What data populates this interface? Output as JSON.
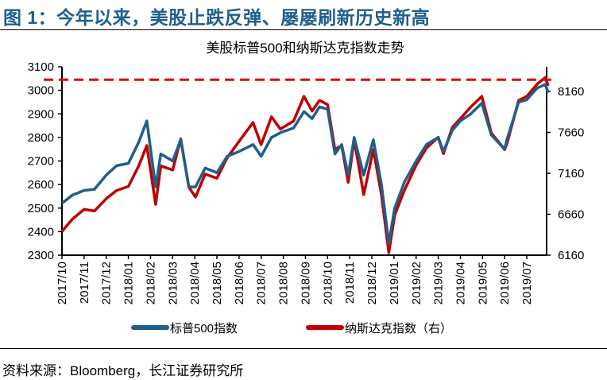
{
  "figure_title": "图 1：今年以来，美股止跌反弹、屡屡刷新历史新高",
  "source": "资料来源：Bloomberg，长江证券研究所",
  "colors": {
    "sp500": "#1f5f8b",
    "nasdaq": "#c00000",
    "title": "#1f5f8b"
  },
  "chart_data": {
    "type": "line",
    "title": "美股标普500和纳斯达克指数走势",
    "legend_position": "bottom",
    "left_axis": {
      "min": 2300,
      "max": 3100,
      "ticks": [
        2300,
        2400,
        2500,
        2600,
        2700,
        2800,
        2900,
        3000,
        3100
      ]
    },
    "right_axis": {
      "min": 6160,
      "max": 8160,
      "ticks": [
        6160,
        6660,
        7160,
        7660,
        8160
      ]
    },
    "x_ticks": [
      "2017/10",
      "2017/11",
      "2017/12",
      "2018/01",
      "2018/02",
      "2018/03",
      "2018/04",
      "2018/05",
      "2018/06",
      "2018/07",
      "2018/08",
      "2018/09",
      "2018/10",
      "2018/11",
      "2018/12",
      "2019/01",
      "2019/02",
      "2019/03",
      "2019/04",
      "2019/05",
      "2019/06",
      "2019/07"
    ],
    "reference_line": {
      "axis": "left",
      "value": 3045,
      "style": "dashed",
      "color": "#e00000"
    },
    "x": [
      "2017/10/01",
      "2017/10/15",
      "2017/11/01",
      "2017/11/15",
      "2017/12/01",
      "2017/12/15",
      "2018/01/01",
      "2018/01/15",
      "2018/01/26",
      "2018/02/08",
      "2018/02/15",
      "2018/03/01",
      "2018/03/12",
      "2018/03/23",
      "2018/04/02",
      "2018/04/15",
      "2018/05/01",
      "2018/05/15",
      "2018/06/01",
      "2018/06/20",
      "2018/07/01",
      "2018/07/15",
      "2018/07/27",
      "2018/08/15",
      "2018/08/29",
      "2018/09/10",
      "2018/09/20",
      "2018/10/01",
      "2018/10/11",
      "2018/10/20",
      "2018/10/29",
      "2018/11/07",
      "2018/11/20",
      "2018/12/03",
      "2018/12/14",
      "2018/12/24",
      "2019/01/02",
      "2019/01/15",
      "2019/02/01",
      "2019/02/15",
      "2019/03/01",
      "2019/03/08",
      "2019/03/20",
      "2019/04/01",
      "2019/04/15",
      "2019/04/30",
      "2019/05/13",
      "2019/05/31",
      "2019/06/04",
      "2019/06/20",
      "2019/07/01",
      "2019/07/15",
      "2019/07/26",
      "2019/07/30"
    ],
    "series": [
      {
        "name": "标普500指数",
        "axis": "left",
        "values": [
          2520,
          2555,
          2575,
          2580,
          2640,
          2680,
          2690,
          2780,
          2870,
          2590,
          2730,
          2700,
          2790,
          2590,
          2590,
          2670,
          2650,
          2720,
          2740,
          2770,
          2720,
          2800,
          2820,
          2840,
          2910,
          2880,
          2930,
          2920,
          2730,
          2770,
          2640,
          2800,
          2640,
          2790,
          2600,
          2350,
          2500,
          2610,
          2700,
          2770,
          2800,
          2740,
          2830,
          2870,
          2900,
          2945,
          2810,
          2750,
          2790,
          2950,
          2960,
          3010,
          3025,
          2990
        ]
      },
      {
        "name": "纳斯达克指数（右）",
        "axis": "right",
        "values": [
          6450,
          6600,
          6720,
          6700,
          6850,
          6950,
          7000,
          7250,
          7500,
          6780,
          7250,
          7200,
          7580,
          6990,
          6870,
          7150,
          7100,
          7350,
          7550,
          7780,
          7510,
          7850,
          7700,
          7800,
          8100,
          7920,
          8050,
          8000,
          7450,
          7500,
          7050,
          7570,
          6900,
          7450,
          6900,
          6190,
          6650,
          6950,
          7260,
          7470,
          7600,
          7400,
          7720,
          7830,
          7970,
          8100,
          7650,
          7450,
          7520,
          8050,
          8100,
          8250,
          8330,
          8230
        ]
      }
    ]
  }
}
